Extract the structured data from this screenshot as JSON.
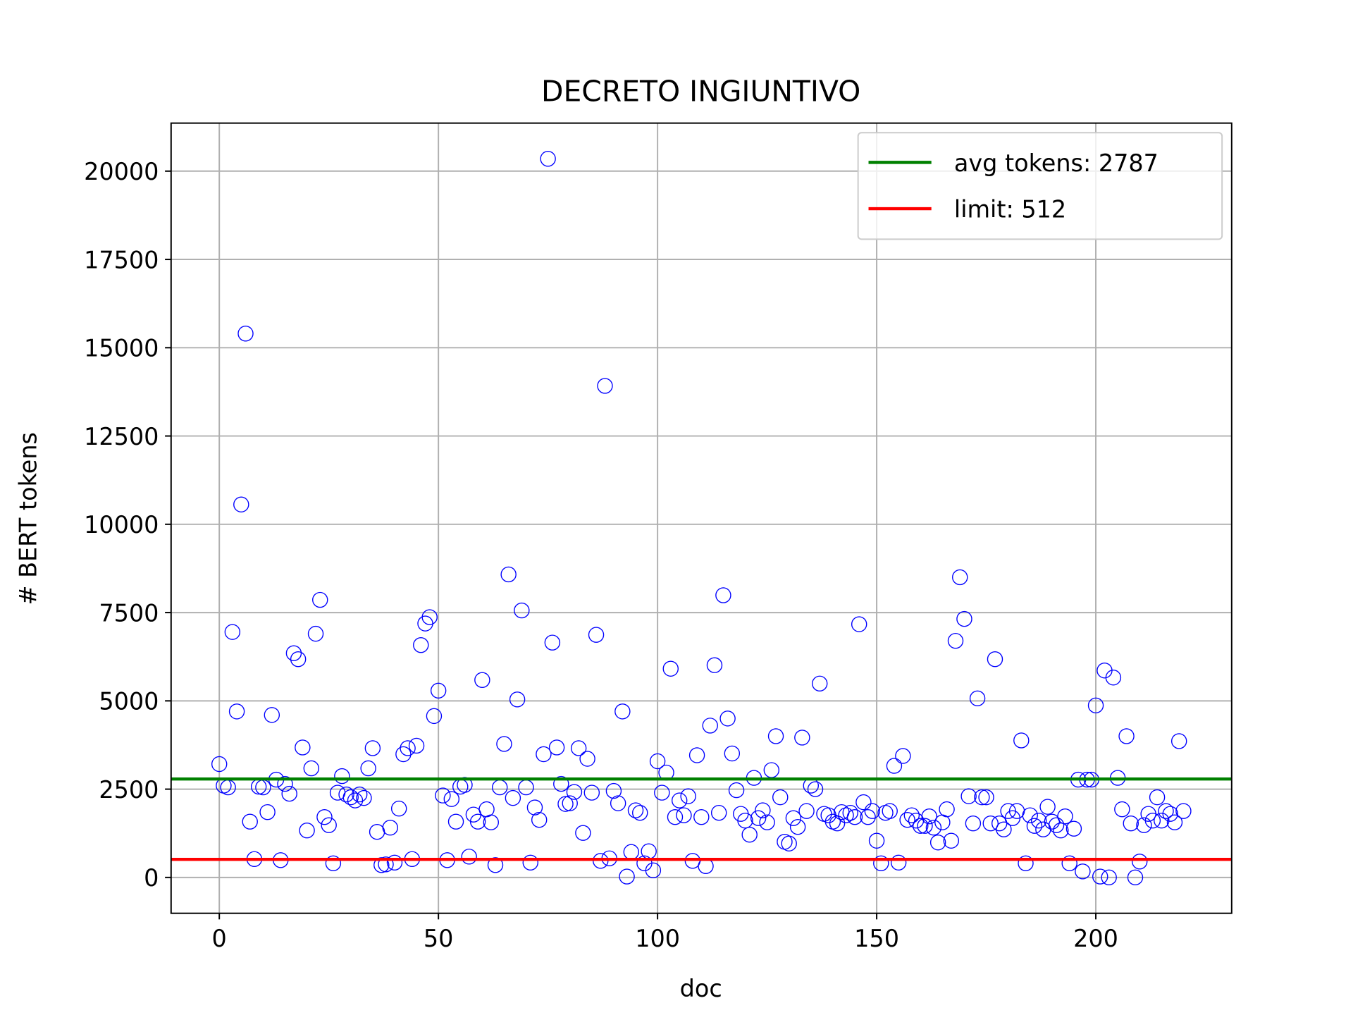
{
  "chart_data": {
    "type": "scatter",
    "title": "DECRETO INGIUNTIVO",
    "xlabel": "doc",
    "ylabel": "# BERT tokens",
    "xlim": [
      -11,
      231
    ],
    "ylim": [
      -1015,
      21360
    ],
    "xticks": [
      0,
      50,
      100,
      150,
      200
    ],
    "yticks": [
      0,
      2500,
      5000,
      7500,
      10000,
      12500,
      15000,
      17500,
      20000
    ],
    "grid": true,
    "legend": "upper right",
    "series": [
      {
        "color": "#0000ff",
        "x": [
          0,
          1,
          2,
          3,
          4,
          5,
          6,
          7,
          8,
          9,
          10,
          11,
          12,
          13,
          14,
          15,
          16,
          17,
          18,
          19,
          20,
          21,
          22,
          23,
          24,
          25,
          26,
          27,
          28,
          29,
          30,
          31,
          32,
          33,
          34,
          35,
          36,
          37,
          38,
          39,
          40,
          41,
          42,
          43,
          44,
          45,
          46,
          47,
          48,
          49,
          50,
          51,
          52,
          53,
          54,
          55,
          56,
          57,
          58,
          59,
          60,
          61,
          62,
          63,
          64,
          65,
          66,
          67,
          68,
          69,
          70,
          71,
          72,
          73,
          74,
          75,
          76,
          77,
          78,
          79,
          80,
          81,
          82,
          83,
          84,
          85,
          86,
          87,
          88,
          89,
          90,
          91,
          92,
          93,
          94,
          95,
          96,
          97,
          98,
          99,
          100,
          101,
          102,
          103,
          104,
          105,
          106,
          107,
          108,
          109,
          110,
          111,
          112,
          113,
          114,
          115,
          116,
          117,
          118,
          119,
          120,
          121,
          122,
          123,
          124,
          125,
          126,
          127,
          128,
          129,
          130,
          131,
          132,
          133,
          134,
          135,
          136,
          137,
          138,
          139,
          140,
          141,
          142,
          143,
          144,
          145,
          146,
          147,
          148,
          149,
          150,
          151,
          152,
          153,
          154,
          155,
          156,
          157,
          158,
          159,
          160,
          161,
          162,
          163,
          164,
          165,
          166,
          167,
          168,
          169,
          170,
          171,
          172,
          173,
          174,
          175,
          176,
          177,
          178,
          179,
          180,
          181,
          182,
          183,
          184,
          185,
          186,
          187,
          188,
          189,
          190,
          191,
          192,
          193,
          194,
          195,
          196,
          197,
          198,
          199,
          200,
          201,
          202,
          203,
          204,
          205,
          206,
          207,
          208,
          209,
          210,
          211,
          212,
          213,
          214,
          215,
          216,
          217,
          218,
          219,
          220
        ],
        "values": [
          3210,
          2600,
          2550,
          6950,
          4700,
          10560,
          15400,
          1580,
          520,
          2570,
          2550,
          1850,
          4600,
          2770,
          490,
          2650,
          2370,
          6350,
          6180,
          3680,
          1330,
          3090,
          6900,
          7860,
          1710,
          1480,
          400,
          2400,
          2870,
          2350,
          2270,
          2180,
          2350,
          2250,
          3090,
          3660,
          1290,
          350,
          370,
          1410,
          420,
          1950,
          3490,
          3660,
          520,
          3730,
          6580,
          7190,
          7370,
          4570,
          5290,
          2320,
          490,
          2220,
          1580,
          2570,
          2620,
          590,
          1780,
          1580,
          5590,
          1930,
          1560,
          350,
          2550,
          3780,
          8580,
          2250,
          5040,
          7560,
          2550,
          420,
          1980,
          1630,
          3490,
          20350,
          6650,
          3680,
          2650,
          2080,
          2100,
          2420,
          3660,
          1260,
          3360,
          2400,
          6870,
          470,
          13920,
          540,
          2450,
          2100,
          4700,
          25,
          720,
          1900,
          1830,
          400,
          740,
          200,
          3290,
          2400,
          2970,
          5910,
          1710,
          2180,
          1760,
          2300,
          470,
          3460,
          1710,
          320,
          4300,
          6010,
          1830,
          7990,
          4500,
          3510,
          2470,
          1800,
          1610,
          1210,
          2820,
          1680,
          1900,
          1560,
          3040,
          4000,
          2270,
          1010,
          960,
          1680,
          1430,
          3960,
          1880,
          2600,
          2500,
          5490,
          1800,
          1760,
          1580,
          1530,
          1850,
          1760,
          1830,
          1710,
          7170,
          2130,
          1710,
          1880,
          1040,
          400,
          1830,
          1880,
          3160,
          420,
          3440,
          1630,
          1760,
          1610,
          1460,
          1460,
          1730,
          1410,
          990,
          1560,
          1930,
          1040,
          6700,
          8500,
          7320,
          2300,
          1530,
          5070,
          2270,
          2270,
          1530,
          6180,
          1530,
          1360,
          1880,
          1680,
          1880,
          3880,
          400,
          1760,
          1460,
          1610,
          1360,
          2000,
          1580,
          1480,
          1330,
          1730,
          400,
          1380,
          2770,
          170,
          2770,
          2770,
          4870,
          25,
          5860,
          0,
          5660,
          2820,
          1930,
          4000,
          1530,
          0,
          450,
          1480,
          1800,
          1610,
          2270,
          1610,
          1880,
          1800,
          1560,
          3860,
          1880
        ]
      }
    ],
    "hlines": [
      {
        "name": "avg tokens: 2787",
        "value": 2787,
        "color": "#008000"
      },
      {
        "name": "limit: 512",
        "value": 512,
        "color": "#ff0000"
      }
    ]
  }
}
